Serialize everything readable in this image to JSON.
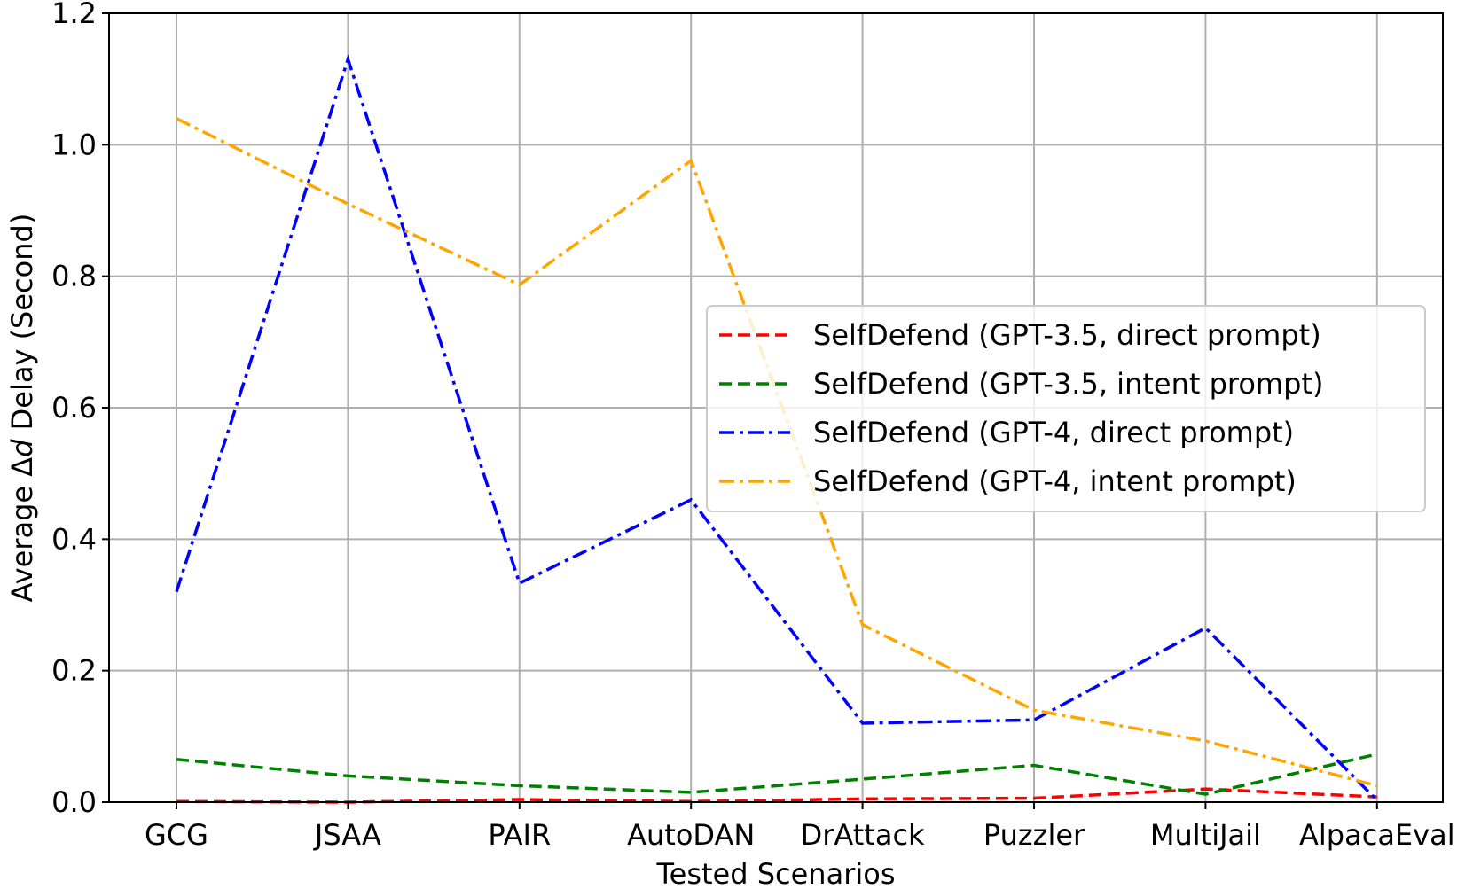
{
  "chart_data": {
    "type": "line",
    "xlabel": "Tested Scenarios",
    "ylabel_prefix": "Average Δ",
    "ylabel_italic": "d",
    "ylabel_suffix": " Delay (Second)",
    "categories": [
      "GCG",
      "JSAA",
      "PAIR",
      "AutoDAN",
      "DrAttack",
      "Puzzler",
      "MultiJail",
      "AlpacaEval"
    ],
    "ylim": [
      0,
      1.2
    ],
    "yticks": [
      "0.0",
      "0.2",
      "0.4",
      "0.6",
      "0.8",
      "1.0",
      "1.2"
    ],
    "grid": true,
    "legend_position": "center-right",
    "series": [
      {
        "name": "SelfDefend (GPT-3.5, direct prompt)",
        "color": "#ff0000",
        "style": "dashed",
        "values": [
          0.001,
          0.0,
          0.004,
          0.001,
          0.005,
          0.006,
          0.02,
          0.008
        ]
      },
      {
        "name": "SelfDefend (GPT-3.5, intent prompt)",
        "color": "#008000",
        "style": "dashed",
        "values": [
          0.065,
          0.04,
          0.025,
          0.015,
          0.035,
          0.056,
          0.012,
          0.073
        ]
      },
      {
        "name": "SelfDefend (GPT-4, direct prompt)",
        "color": "#0000ff",
        "style": "dashdot",
        "values": [
          0.32,
          1.13,
          0.333,
          0.46,
          0.12,
          0.125,
          0.265,
          0.003
        ]
      },
      {
        "name": "SelfDefend (GPT-4, intent prompt)",
        "color": "#ffa500",
        "style": "dashdot",
        "values": [
          1.04,
          0.91,
          0.787,
          0.976,
          0.27,
          0.14,
          0.093,
          0.025
        ]
      }
    ]
  }
}
